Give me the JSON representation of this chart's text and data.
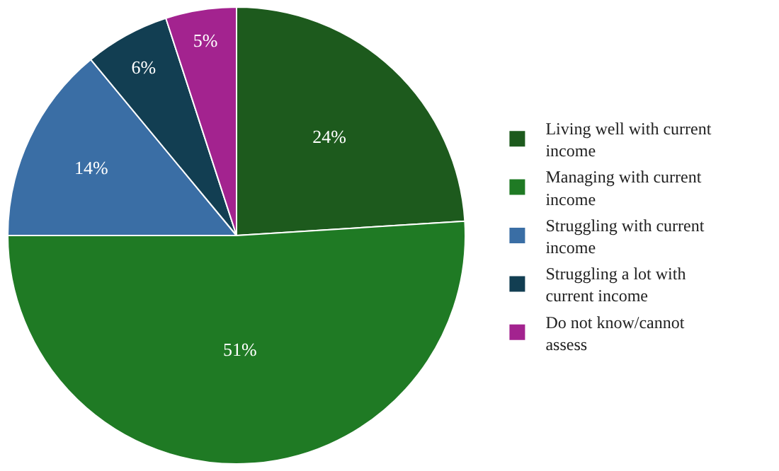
{
  "chart_data": {
    "type": "pie",
    "categories": [
      "Living well with current income",
      "Managing with current income",
      "Struggling with current income",
      "Struggling a lot with current income",
      "Do not know/cannot assess"
    ],
    "values": [
      24,
      51,
      14,
      6,
      5
    ],
    "value_labels": [
      "24%",
      "51%",
      "14%",
      "6%",
      "5%"
    ],
    "colors": [
      "#1d5a1d",
      "#1f7a24",
      "#3a6ea5",
      "#123e52",
      "#a3238f"
    ],
    "legend": "right"
  }
}
